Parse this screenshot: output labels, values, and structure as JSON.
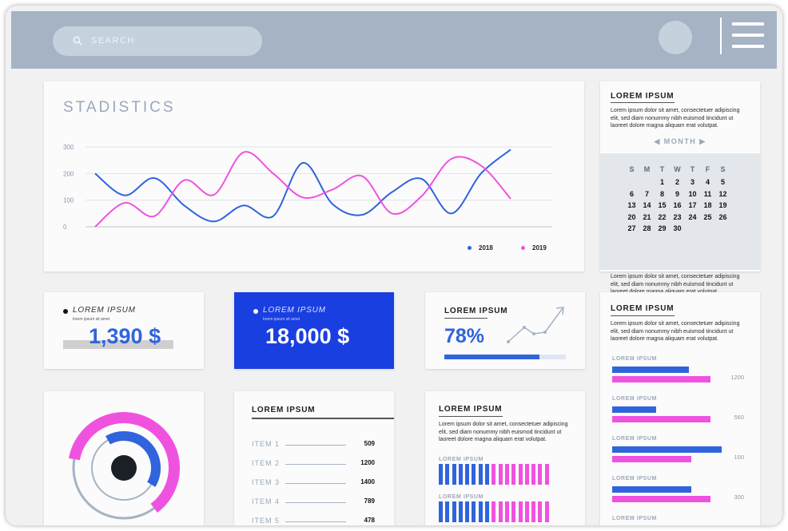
{
  "colors": {
    "blue": "#2f64dd",
    "deep_blue": "#1a3fe0",
    "pink": "#f052e0",
    "header_bg": "#a5b3c5",
    "gray_text": "#9aa8ba"
  },
  "header": {
    "search_placeholder": "SEARCH",
    "search_icon": "search-icon",
    "menu_icon": "hamburger-menu-icon"
  },
  "statistics": {
    "title": "STADISTICS"
  },
  "chart_data": {
    "type": "line",
    "title": "STADISTICS",
    "ylim": [
      0,
      300
    ],
    "yticks": [
      "300",
      "200",
      "100",
      "0"
    ],
    "grid": true,
    "legend_position": "bottom-right",
    "x": [
      0,
      1,
      2,
      3,
      4,
      5,
      6,
      7,
      8,
      9,
      10,
      11,
      12,
      13,
      14
    ],
    "series": [
      {
        "name": "2018",
        "color": "#2f64dd",
        "values": [
          200,
          118,
          183,
          80,
          20,
          80,
          40,
          240,
          85,
          45,
          130,
          180,
          50,
          200,
          290
        ]
      },
      {
        "name": "2019",
        "color": "#f052e0",
        "values": [
          0,
          90,
          40,
          175,
          120,
          280,
          200,
          110,
          140,
          190,
          50,
          115,
          255,
          230,
          105
        ]
      }
    ]
  },
  "calendar": {
    "title": "LOREM IPSUM",
    "text": "Lorem ipsum dolor sit amet, consectetuer adipiscing elit, sed diam nonummy nibh euismod tincidunt ut laoreet dolore magna aliquam erat volutpat.",
    "month_label": "MONTH",
    "days_of_week": [
      "S",
      "M",
      "T",
      "W",
      "T",
      "F",
      "S"
    ],
    "dates": [
      "",
      "",
      "1",
      "2",
      "3",
      "4",
      "5",
      "6",
      "7",
      "8",
      "9",
      "10",
      "11",
      "12",
      "13",
      "14",
      "15",
      "16",
      "17",
      "18",
      "19",
      "20",
      "21",
      "22",
      "23",
      "24",
      "25",
      "26",
      "27",
      "28",
      "29",
      "30"
    ],
    "footer_text": "Lorem ipsum dolor sit amet, consectetuer adipiscing elit, sed diam nonummy nibh euismod tincidunt ut laoreet dolore magna aliquam erat volutpat."
  },
  "kpi1": {
    "label": "LOREM IPSUM",
    "sub": "lorem ipsum sit amet",
    "value": "1,390 $"
  },
  "kpi2": {
    "label": "LOREM IPSUM",
    "sub": "lorem ipsum sit amet",
    "value": "18,000 $"
  },
  "kpi3": {
    "label": "LOREM IPSUM",
    "value": "78%",
    "progress": 0.78
  },
  "donut": {
    "outer_fraction": 0.62,
    "inner_fraction": 0.42
  },
  "items_card": {
    "title": "LOREM IPSUM",
    "items": [
      {
        "name": "ITEM 1",
        "value": "509"
      },
      {
        "name": "ITEM 2",
        "value": "1200"
      },
      {
        "name": "ITEM 3",
        "value": "1400"
      },
      {
        "name": "ITEM 4",
        "value": "789"
      },
      {
        "name": "ITEM 5",
        "value": "478"
      }
    ]
  },
  "stripes_card": {
    "title": "LOREM IPSUM",
    "text": "Lorem ipsum dolor sit amet, consectetuer adipiscing elit, sed diam nonummy nibh euismod tincidunt ut laoreet dolore magna aliquam erat volutpat.",
    "groups": [
      {
        "label": "LOREM IPSUM",
        "blue": 8,
        "pink": 9
      },
      {
        "label": "LOREM IPSUM",
        "blue": 8,
        "pink": 9
      }
    ]
  },
  "bars_card": {
    "title": "LOREM IPSUM",
    "text": "Lorem ipsum dolor sit amet, consectetuer adipiscing elit, sed diam nonummy nibh euismod tincidunt ut laoreet dolore magna aliquam erat volutpat.",
    "groups": [
      {
        "label": "LOREM IPSUM",
        "blue": 0.7,
        "pink": 1.0,
        "value": "1200"
      },
      {
        "label": "LOREM IPSUM",
        "blue": 0.4,
        "pink": 1.0,
        "value": "560"
      },
      {
        "label": "LOREM IPSUM",
        "blue": 1.0,
        "pink": 0.8,
        "value": "100"
      },
      {
        "label": "LOREM IPSUM",
        "blue": 0.72,
        "pink": 1.0,
        "value": "300"
      },
      {
        "label": "LOREM IPSUM",
        "blue": 0.0,
        "pink": 0.0,
        "value": ""
      }
    ]
  }
}
